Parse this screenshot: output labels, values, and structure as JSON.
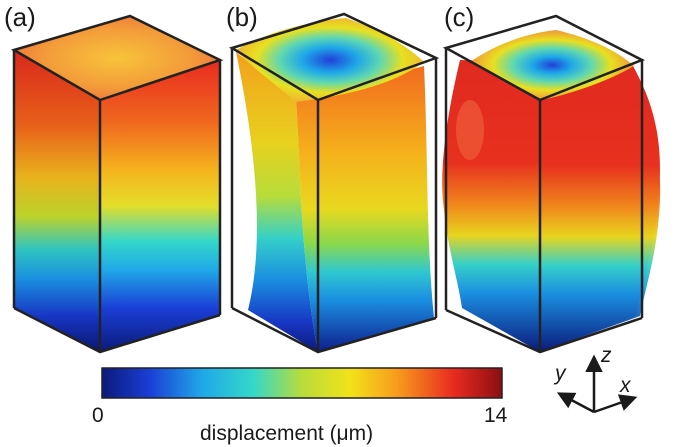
{
  "panels": [
    {
      "label": "(a)"
    },
    {
      "label": "(b)"
    },
    {
      "label": "(c)"
    }
  ],
  "colorbar": {
    "min_label": "0",
    "max_label": "14",
    "title": "displacement (μm)",
    "colors": [
      "#0b1a7a",
      "#1b3fd6",
      "#1fa8e8",
      "#35d8c8",
      "#b8dc3a",
      "#f2e21a",
      "#f79a1c",
      "#e82a20",
      "#8c0f12"
    ]
  },
  "axes": {
    "x": "x",
    "y": "y",
    "z": "z"
  }
}
